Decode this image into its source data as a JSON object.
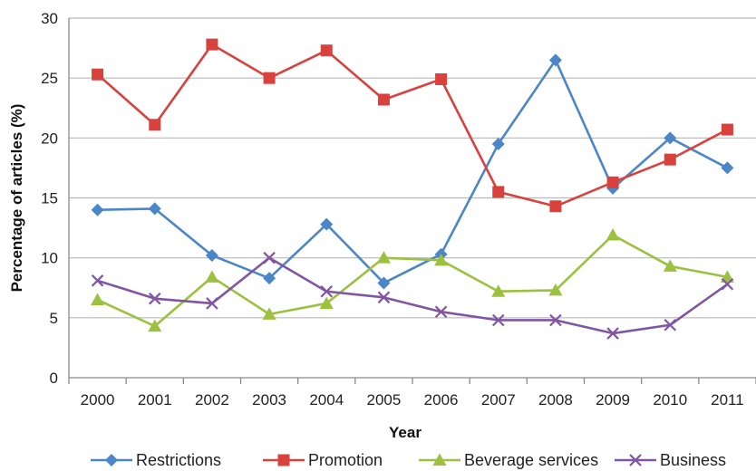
{
  "chart_data": {
    "type": "line",
    "title": "",
    "xlabel": "Year",
    "ylabel": "Percentage of articles (%)",
    "categories": [
      "2000",
      "2001",
      "2002",
      "2003",
      "2004",
      "2005",
      "2006",
      "2007",
      "2008",
      "2009",
      "2010",
      "2011"
    ],
    "ylim": [
      0,
      30
    ],
    "yticks": [
      0,
      5,
      10,
      15,
      20,
      25,
      30
    ],
    "grid": "horizontal",
    "legend_position": "bottom",
    "series": [
      {
        "name": "Restrictions",
        "color": "#4a86c8",
        "marker": "diamond",
        "values": [
          14.0,
          14.1,
          10.2,
          8.3,
          12.8,
          7.9,
          10.3,
          19.5,
          26.5,
          15.8,
          20.0,
          17.5
        ]
      },
      {
        "name": "Promotion",
        "color": "#d9413d",
        "marker": "square",
        "values": [
          25.3,
          21.1,
          27.8,
          25.0,
          27.3,
          23.2,
          24.9,
          15.5,
          14.3,
          16.3,
          18.2,
          20.7
        ]
      },
      {
        "name": "Beverage services",
        "color": "#9bc13f",
        "marker": "triangle",
        "values": [
          6.5,
          4.3,
          8.4,
          5.3,
          6.2,
          10.0,
          9.8,
          7.2,
          7.3,
          11.9,
          9.3,
          8.4
        ]
      },
      {
        "name": "Business",
        "color": "#8056a3",
        "marker": "x",
        "values": [
          8.1,
          6.6,
          6.2,
          10.0,
          7.2,
          6.7,
          5.5,
          4.8,
          4.8,
          3.7,
          4.4,
          7.8
        ]
      }
    ]
  }
}
